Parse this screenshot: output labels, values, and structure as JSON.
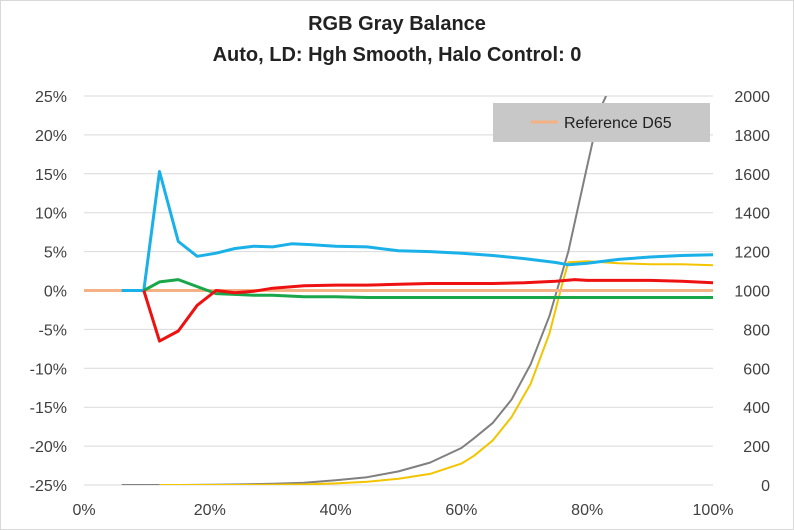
{
  "chart": {
    "title_line1": "RGB Gray Balance",
    "title_line2": "Auto, LD: Hgh Smooth, Halo Control: 0"
  },
  "chart_data": {
    "type": "line",
    "title": "RGB Gray Balance",
    "subtitle": "Auto, LD: Hgh Smooth, Halo Control: 0",
    "xlabel": "",
    "ylabel": "",
    "xlim": [
      0,
      100
    ],
    "ylim": [
      -25,
      25
    ],
    "y2lim": [
      0,
      2000
    ],
    "x_ticks": [
      "0%",
      "20%",
      "40%",
      "60%",
      "80%",
      "100%"
    ],
    "x_tick_values": [
      0,
      20,
      40,
      60,
      80,
      100
    ],
    "y_ticks": [
      "-25%",
      "-20%",
      "-15%",
      "-10%",
      "-5%",
      "0%",
      "5%",
      "10%",
      "15%",
      "20%",
      "25%"
    ],
    "y_tick_values": [
      -25,
      -20,
      -15,
      -10,
      -5,
      0,
      5,
      10,
      15,
      20,
      25
    ],
    "y2_ticks": [
      "0",
      "200",
      "400",
      "600",
      "800",
      "1000",
      "1200",
      "1400",
      "1600",
      "1800",
      "2000"
    ],
    "y2_tick_values": [
      0,
      200,
      400,
      600,
      800,
      1000,
      1200,
      1400,
      1600,
      1800,
      2000
    ],
    "grid": true,
    "legend_position": "top-right",
    "colors": {
      "reference": "#f4b183",
      "red": "#ee1111",
      "green": "#1aa64a",
      "blue": "#1ab0e8",
      "gray": "#808080",
      "yellow": "#f2c500"
    },
    "series": [
      {
        "name": "Reference D65",
        "axis": "left",
        "color": "#f4b183",
        "x": [
          0,
          5,
          10,
          15,
          20,
          25,
          30,
          35,
          40,
          45,
          50,
          55,
          60,
          65,
          70,
          75,
          80,
          85,
          90,
          95,
          100
        ],
        "y": [
          0,
          0,
          0,
          0,
          0,
          0,
          0,
          0,
          0,
          0,
          0,
          0,
          0,
          0,
          0,
          0,
          0,
          0,
          0,
          0,
          0
        ]
      },
      {
        "axis": "left",
        "color": "#ee1111",
        "x": [
          9.5,
          12,
          15,
          18,
          21,
          24,
          27,
          30,
          35,
          40,
          45,
          50,
          55,
          60,
          65,
          70,
          75,
          78,
          80,
          85,
          90,
          95,
          100
        ],
        "y": [
          0,
          -6.5,
          -5.2,
          -1.9,
          0,
          -0.3,
          -0.1,
          0.3,
          0.6,
          0.7,
          0.7,
          0.8,
          0.9,
          0.9,
          0.9,
          1.0,
          1.2,
          1.4,
          1.3,
          1.3,
          1.3,
          1.2,
          1.0
        ]
      },
      {
        "axis": "left",
        "color": "#1aa64a",
        "x": [
          9.5,
          12,
          15,
          18,
          21,
          24,
          27,
          30,
          35,
          40,
          45,
          50,
          55,
          60,
          65,
          70,
          75,
          80,
          85,
          90,
          95,
          100
        ],
        "y": [
          0,
          1.1,
          1.4,
          0.5,
          -0.4,
          -0.5,
          -0.6,
          -0.6,
          -0.8,
          -0.8,
          -0.9,
          -0.9,
          -0.9,
          -0.9,
          -0.9,
          -0.9,
          -0.9,
          -0.9,
          -0.9,
          -0.9,
          -0.9,
          -0.9
        ]
      },
      {
        "axis": "left",
        "color": "#1ab0e8",
        "x": [
          6,
          9.5,
          12,
          15,
          18,
          21,
          24,
          27,
          30,
          33,
          36,
          40,
          45,
          50,
          55,
          60,
          65,
          70,
          75,
          77,
          80,
          85,
          90,
          95,
          100
        ],
        "y": [
          0,
          0,
          15.3,
          6.3,
          4.4,
          4.8,
          5.4,
          5.7,
          5.6,
          6.0,
          5.9,
          5.7,
          5.6,
          5.1,
          5.0,
          4.8,
          4.5,
          4.1,
          3.6,
          3.3,
          3.5,
          4.0,
          4.3,
          4.5,
          4.6
        ]
      },
      {
        "axis": "right",
        "color": "#808080",
        "x": [
          6,
          10,
          15,
          20,
          25,
          30,
          35,
          40,
          45,
          50,
          55,
          60,
          62,
          65,
          68,
          71,
          74,
          77,
          80,
          82,
          83
        ],
        "y": [
          0,
          0,
          0,
          1,
          3,
          6,
          12,
          24,
          40,
          70,
          115,
          190,
          240,
          320,
          440,
          620,
          870,
          1200,
          1640,
          1930,
          2000
        ]
      },
      {
        "axis": "right",
        "color": "#f2c500",
        "x": [
          12,
          20,
          25,
          30,
          35,
          40,
          45,
          50,
          55,
          60,
          62,
          65,
          68,
          71,
          74,
          76,
          77,
          80,
          85,
          90,
          95,
          100
        ],
        "y": [
          0,
          0,
          0,
          1,
          3,
          8,
          17,
          32,
          57,
          110,
          150,
          230,
          350,
          520,
          780,
          1030,
          1145,
          1150,
          1140,
          1135,
          1135,
          1130
        ]
      }
    ]
  }
}
